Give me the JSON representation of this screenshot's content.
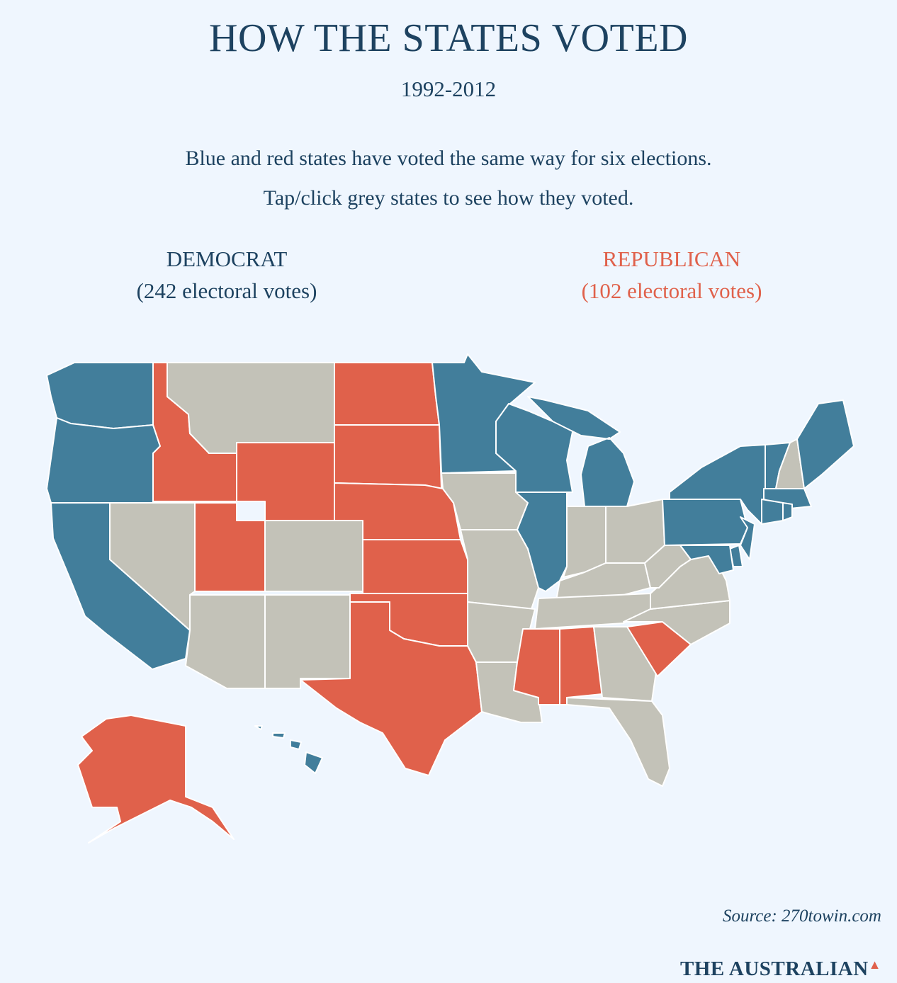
{
  "header": {
    "title": "HOW THE STATES VOTED",
    "years": "1992-2012",
    "description_line1": "Blue and red states have voted the same way for six elections.",
    "description_line2": "Tap/click grey states to see how they voted."
  },
  "legend": {
    "democrat_label": "DEMOCRAT",
    "democrat_votes": "(242 electoral votes)",
    "republican_label": "REPUBLICAN",
    "republican_votes": "(102 electoral votes)"
  },
  "colors": {
    "democrat": "#427e9b",
    "republican": "#e0614b",
    "swing": "#c3c2b8",
    "background": "#eff6fe",
    "text": "#1d4260"
  },
  "map": {
    "democrat_states": [
      "WA",
      "OR",
      "CA",
      "MN",
      "WI",
      "MI",
      "IL",
      "NY",
      "PA",
      "NJ",
      "DE",
      "MD",
      "VT",
      "ME",
      "MA",
      "CT",
      "RI",
      "HI"
    ],
    "republican_states": [
      "ID",
      "ND",
      "SD",
      "NE",
      "KS",
      "OK",
      "TX",
      "WY",
      "UT",
      "MS",
      "AL",
      "SC",
      "AK"
    ],
    "swing_states": [
      "MT",
      "NV",
      "CO",
      "AZ",
      "NM",
      "IA",
      "MO",
      "AR",
      "LA",
      "IN",
      "OH",
      "KY",
      "TN",
      "WV",
      "VA",
      "NC",
      "GA",
      "FL",
      "NH"
    ]
  },
  "footer": {
    "source": "Source: 270towin.com",
    "brand": "THE AUSTRALIAN"
  }
}
